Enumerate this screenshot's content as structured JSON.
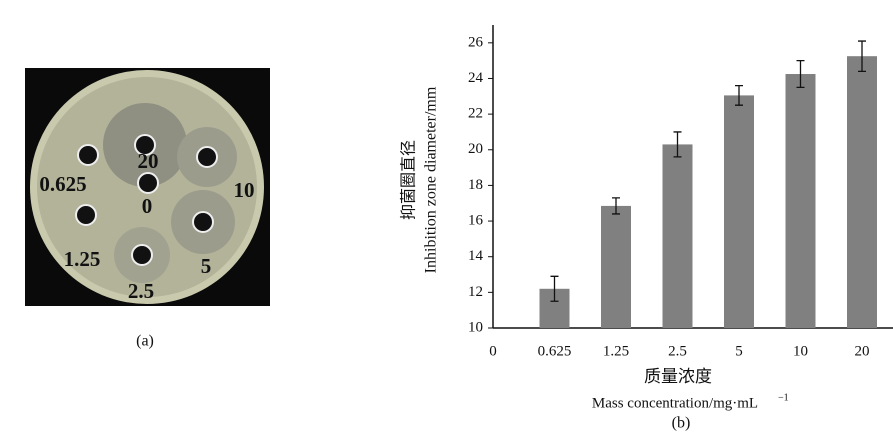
{
  "photo": {
    "caption": "(a)",
    "labels": [
      "20",
      "0.625",
      "0",
      "10",
      "1.25",
      "5",
      "2.5"
    ]
  },
  "chart_data": {
    "type": "bar",
    "caption": "(b)",
    "y_label": [
      "抑菌圈直径",
      "Inhibition  zone  diameter/mm"
    ],
    "x_label": [
      "质量浓度",
      "Mass  concentration/mg·mL",
      "−1"
    ],
    "categories": [
      "0",
      "0.625",
      "1.25",
      "2.5",
      "5",
      "10",
      "20"
    ],
    "values": [
      null,
      12.2,
      16.85,
      20.3,
      23.05,
      24.25,
      25.25
    ],
    "errors": [
      null,
      0.7,
      0.45,
      0.7,
      0.55,
      0.75,
      0.85
    ],
    "color": "#808080",
    "ylim": [
      10,
      27
    ],
    "yticks": [
      10,
      12,
      14,
      16,
      18,
      20,
      22,
      24,
      26
    ]
  }
}
